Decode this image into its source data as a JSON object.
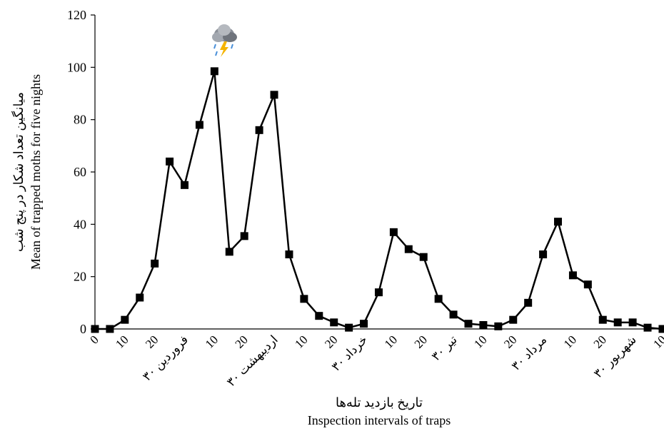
{
  "chart_data": {
    "type": "line",
    "y_label": [
      "میانگین تعداد شکار در پنج شب",
      "Mean of trapped moths for five nights"
    ],
    "x_label": [
      "تاریخ بازدید تله‌ها",
      "Inspection intervals of traps"
    ],
    "categories": [
      "0",
      null,
      "10",
      null,
      "20",
      null,
      "۳۰ فروردین",
      null,
      "10",
      null,
      "20",
      null,
      "۳۰ اردیبهشت",
      null,
      "10",
      null,
      "20",
      null,
      "۳۰ خرداد",
      null,
      "10",
      null,
      "20",
      null,
      "۳۰ تیر",
      null,
      "10",
      null,
      "20",
      null,
      "۳۰ مرداد",
      null,
      "10",
      null,
      "20",
      null,
      "۳۰ شهریور",
      null,
      "10"
    ],
    "series": [
      {
        "color": "#000000",
        "values": [
          0,
          0,
          3.5,
          12,
          25,
          64,
          55,
          78,
          98.5,
          29.5,
          35.5,
          76,
          89.5,
          28.5,
          11.5,
          5,
          2.5,
          0.5,
          2,
          14,
          37,
          30.5,
          27.5,
          11.5,
          5.5,
          2,
          1.5,
          1,
          3.5,
          10,
          28.5,
          41,
          20.5,
          17,
          3.5,
          2.5,
          2.5,
          0.5,
          0
        ]
      }
    ],
    "ylim": [
      0,
      120
    ],
    "yticks": [
      0,
      20,
      40,
      60,
      80,
      100,
      120
    ]
  }
}
